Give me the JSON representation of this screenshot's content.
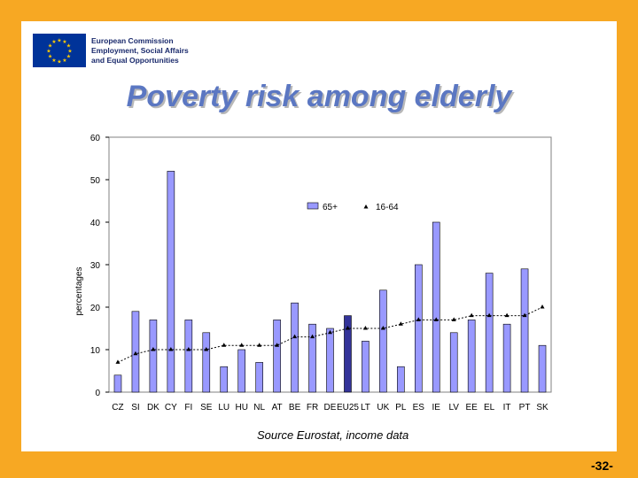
{
  "header": {
    "org_lines": [
      "European Commission",
      "Employment, Social Affairs",
      "and Equal Opportunities"
    ],
    "title": "Poverty risk among elderly"
  },
  "footer": {
    "source": "Source Eurostat, income data",
    "page_number": "-32-"
  },
  "colors": {
    "background": "#f7a823",
    "bar": "#9999ff",
    "bar_highlight": "#333399",
    "line": "#000000"
  },
  "chart_data": {
    "type": "bar",
    "title": "",
    "ylabel": "percentages",
    "xlabel": "",
    "ylim": [
      0,
      60
    ],
    "yticks": [
      0,
      10,
      20,
      30,
      40,
      50,
      60
    ],
    "grid": false,
    "legend_position": "upper-middle",
    "categories": [
      "CZ",
      "SI",
      "DK",
      "CY",
      "FI",
      "SE",
      "LU",
      "HU",
      "NL",
      "AT",
      "BE",
      "FR",
      "DE",
      "EU25",
      "LT",
      "UK",
      "PL",
      "ES",
      "IE",
      "LV",
      "EE",
      "EL",
      "IT",
      "PT",
      "SK"
    ],
    "highlight_category": "EU25",
    "series": [
      {
        "name": "65+",
        "kind": "bar",
        "values": [
          4,
          19,
          17,
          52,
          17,
          14,
          6,
          10,
          7,
          17,
          21,
          16,
          15,
          18,
          12,
          24,
          6,
          30,
          40,
          14,
          17,
          28,
          16,
          29,
          11
        ]
      },
      {
        "name": "16-64",
        "kind": "line",
        "values": [
          7,
          9,
          10,
          10,
          10,
          10,
          11,
          11,
          11,
          11,
          13,
          13,
          14,
          15,
          15,
          15,
          16,
          17,
          17,
          17,
          18,
          18,
          18,
          18,
          20
        ]
      }
    ]
  }
}
